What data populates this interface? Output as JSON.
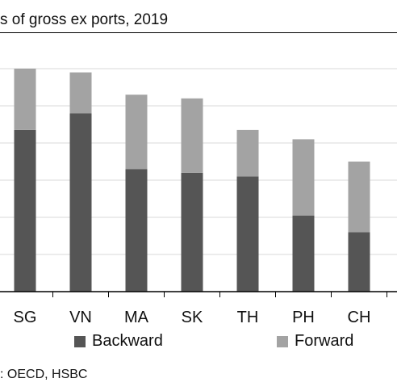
{
  "title": "s of gross ex ports, 2019",
  "source": ": OECD, HSBC",
  "colors": {
    "backward": "#555555",
    "forward": "#a3a3a3"
  },
  "chart_data": {
    "type": "bar",
    "stacked": true,
    "categories": [
      "SG",
      "VN",
      "MA",
      "SK",
      "TH",
      "PH",
      "CH"
    ],
    "series": [
      {
        "name": "Backward",
        "values": [
          43.5,
          48,
          33,
          32,
          31,
          20.5,
          16
        ]
      },
      {
        "name": "Forward",
        "values": [
          16.5,
          11,
          20,
          20,
          12.5,
          20.5,
          19
        ]
      }
    ],
    "ylim": [
      0,
      60
    ],
    "grid": true,
    "legend": "bottom"
  }
}
